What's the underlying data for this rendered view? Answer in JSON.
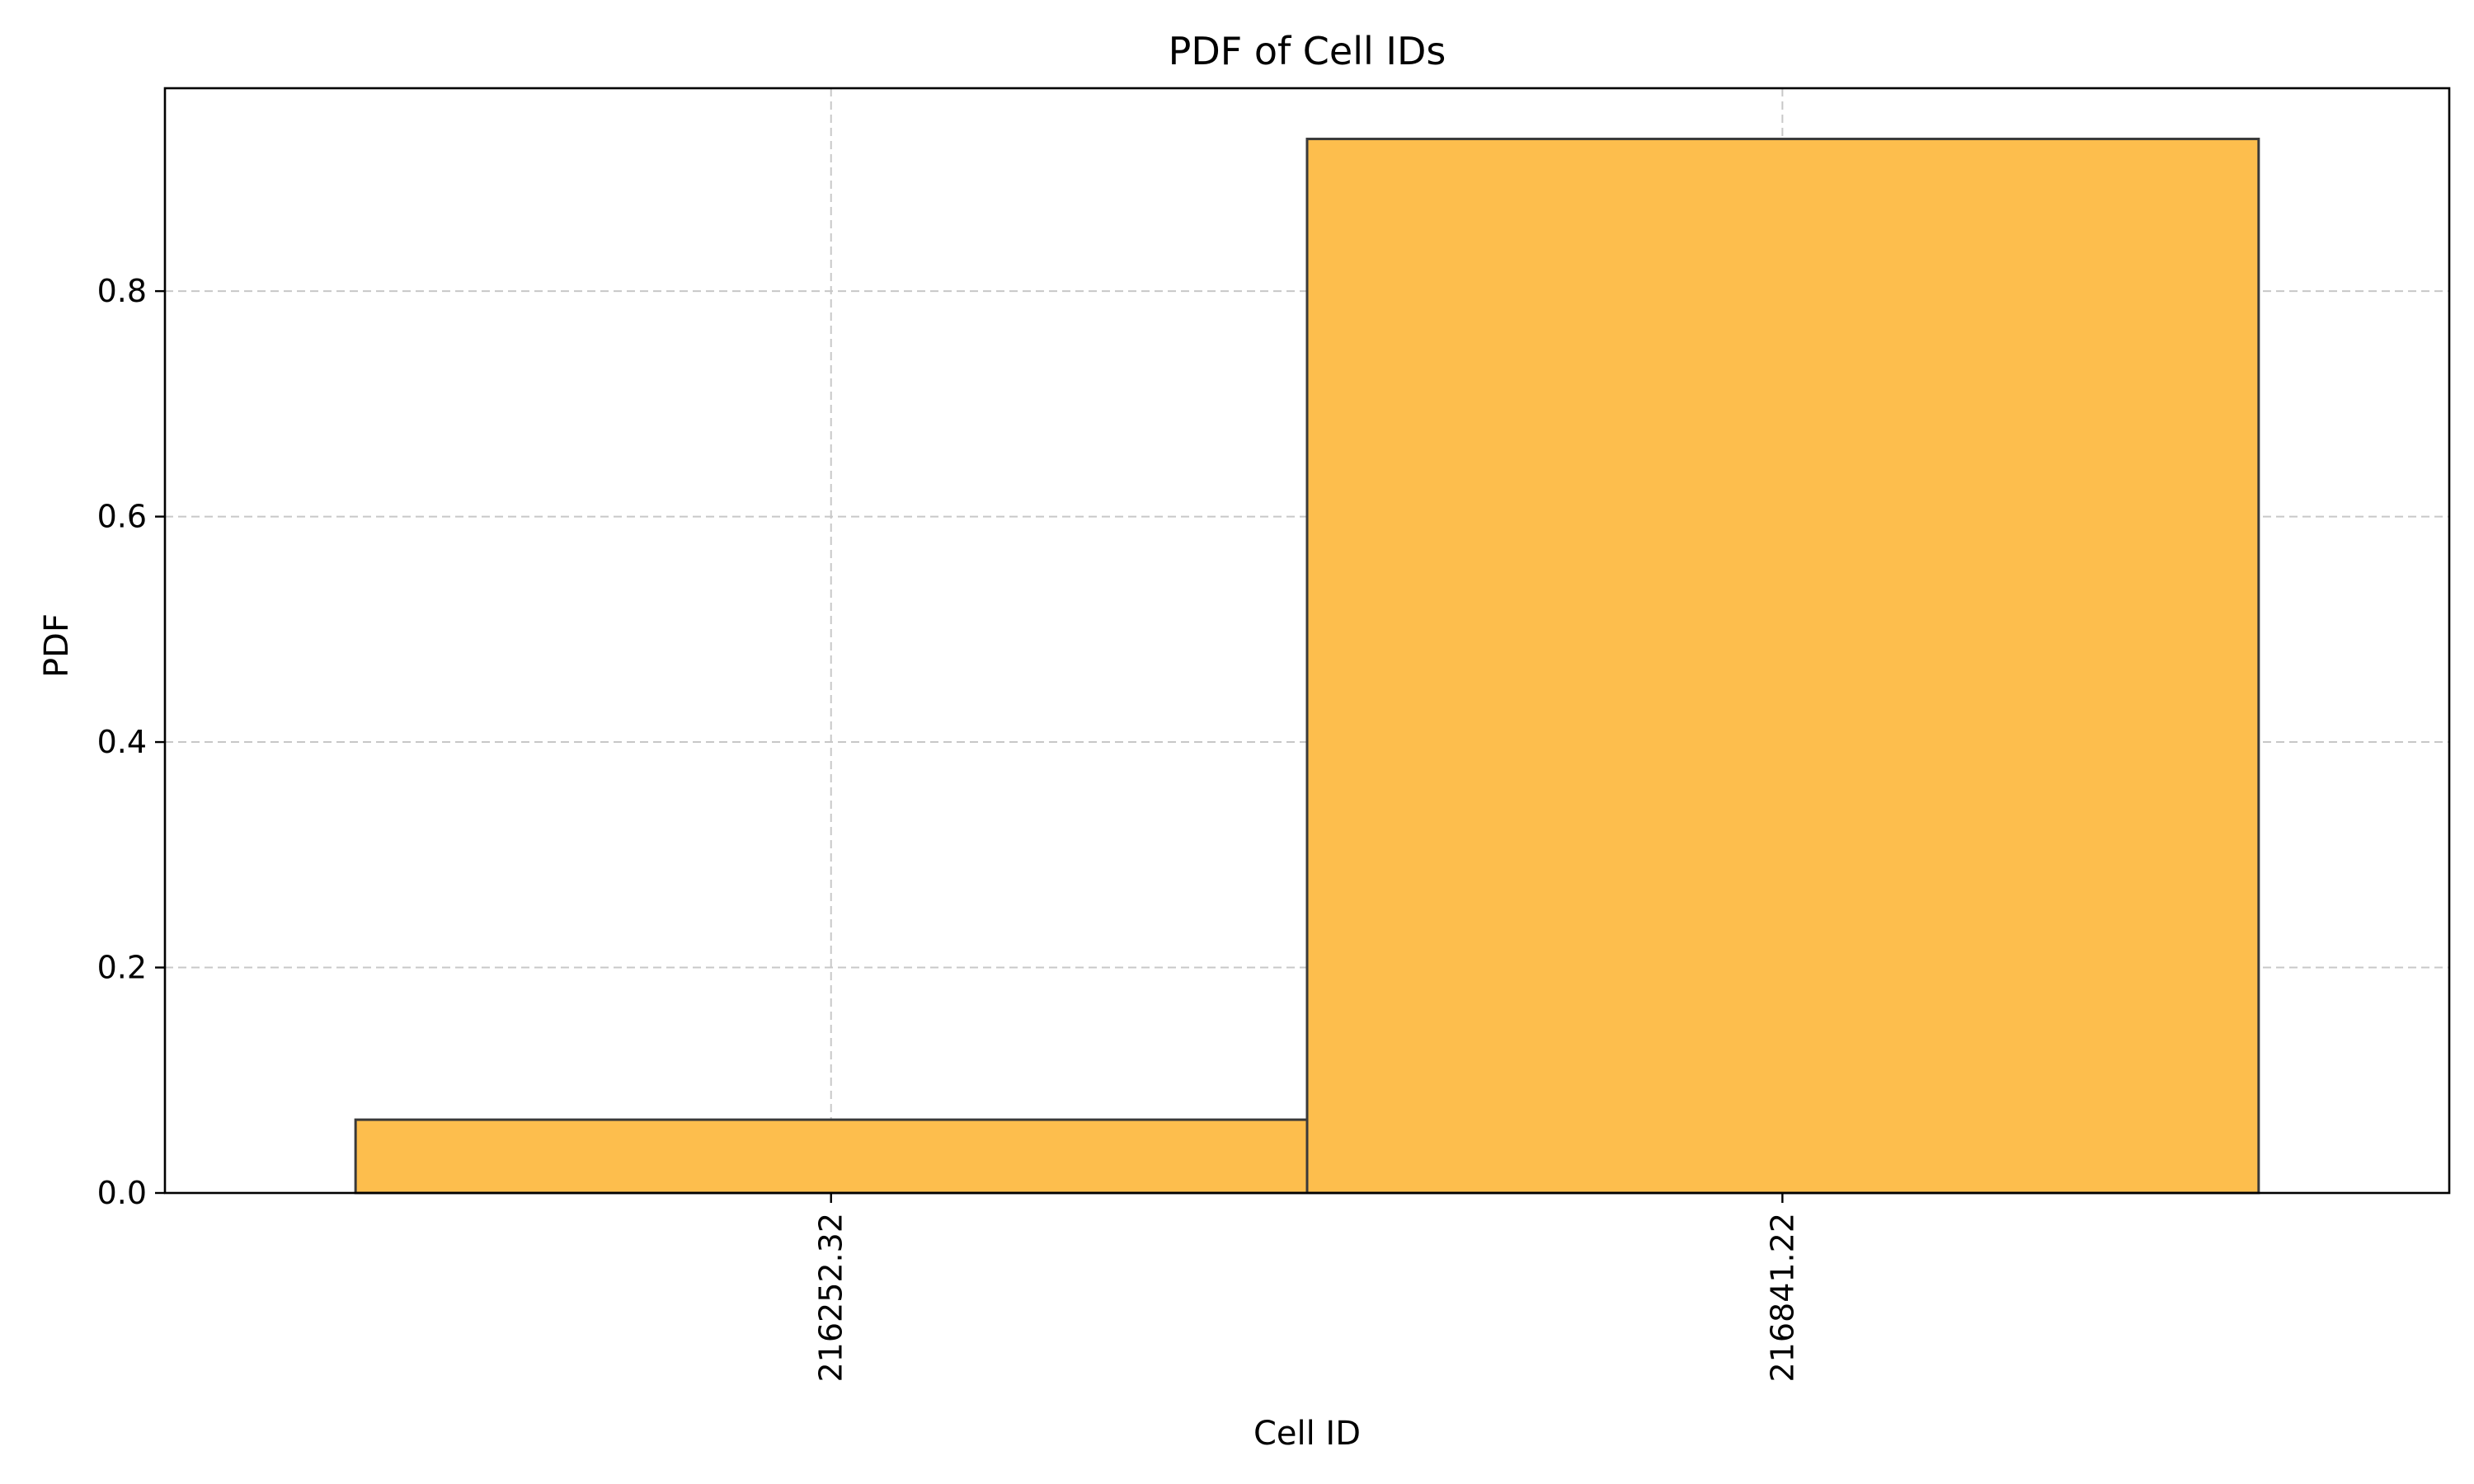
{
  "chart_data": {
    "type": "bar",
    "title": "PDF of Cell IDs",
    "xlabel": "Cell ID",
    "ylabel": "PDF",
    "categories": [
      "216252.32",
      "216841.22"
    ],
    "values": [
      0.065,
      0.935
    ],
    "bins": [
      {
        "label": "216252.32",
        "x_start": 215958.0,
        "x_end": 216547.0,
        "value": 0.065
      },
      {
        "label": "216841.22",
        "x_start": 216547.0,
        "x_end": 217136.0,
        "value": 0.935
      }
    ],
    "xlim": [
      215840.0,
      217254.0
    ],
    "ylim": [
      0.0,
      0.98
    ],
    "yticks": [
      0.0,
      0.2,
      0.4,
      0.6,
      0.8
    ],
    "ytick_labels": [
      "0.0",
      "0.2",
      "0.4",
      "0.6",
      "0.8"
    ],
    "xticks": [
      216252.32,
      216841.22
    ],
    "xtick_labels": [
      "216252.32",
      "216841.22"
    ],
    "grid": true,
    "colors": {
      "bar_fill": "#fdbe4d",
      "bar_edge": "#3a3a3a",
      "grid": "#c8c8c8",
      "axis": "#000000"
    }
  }
}
